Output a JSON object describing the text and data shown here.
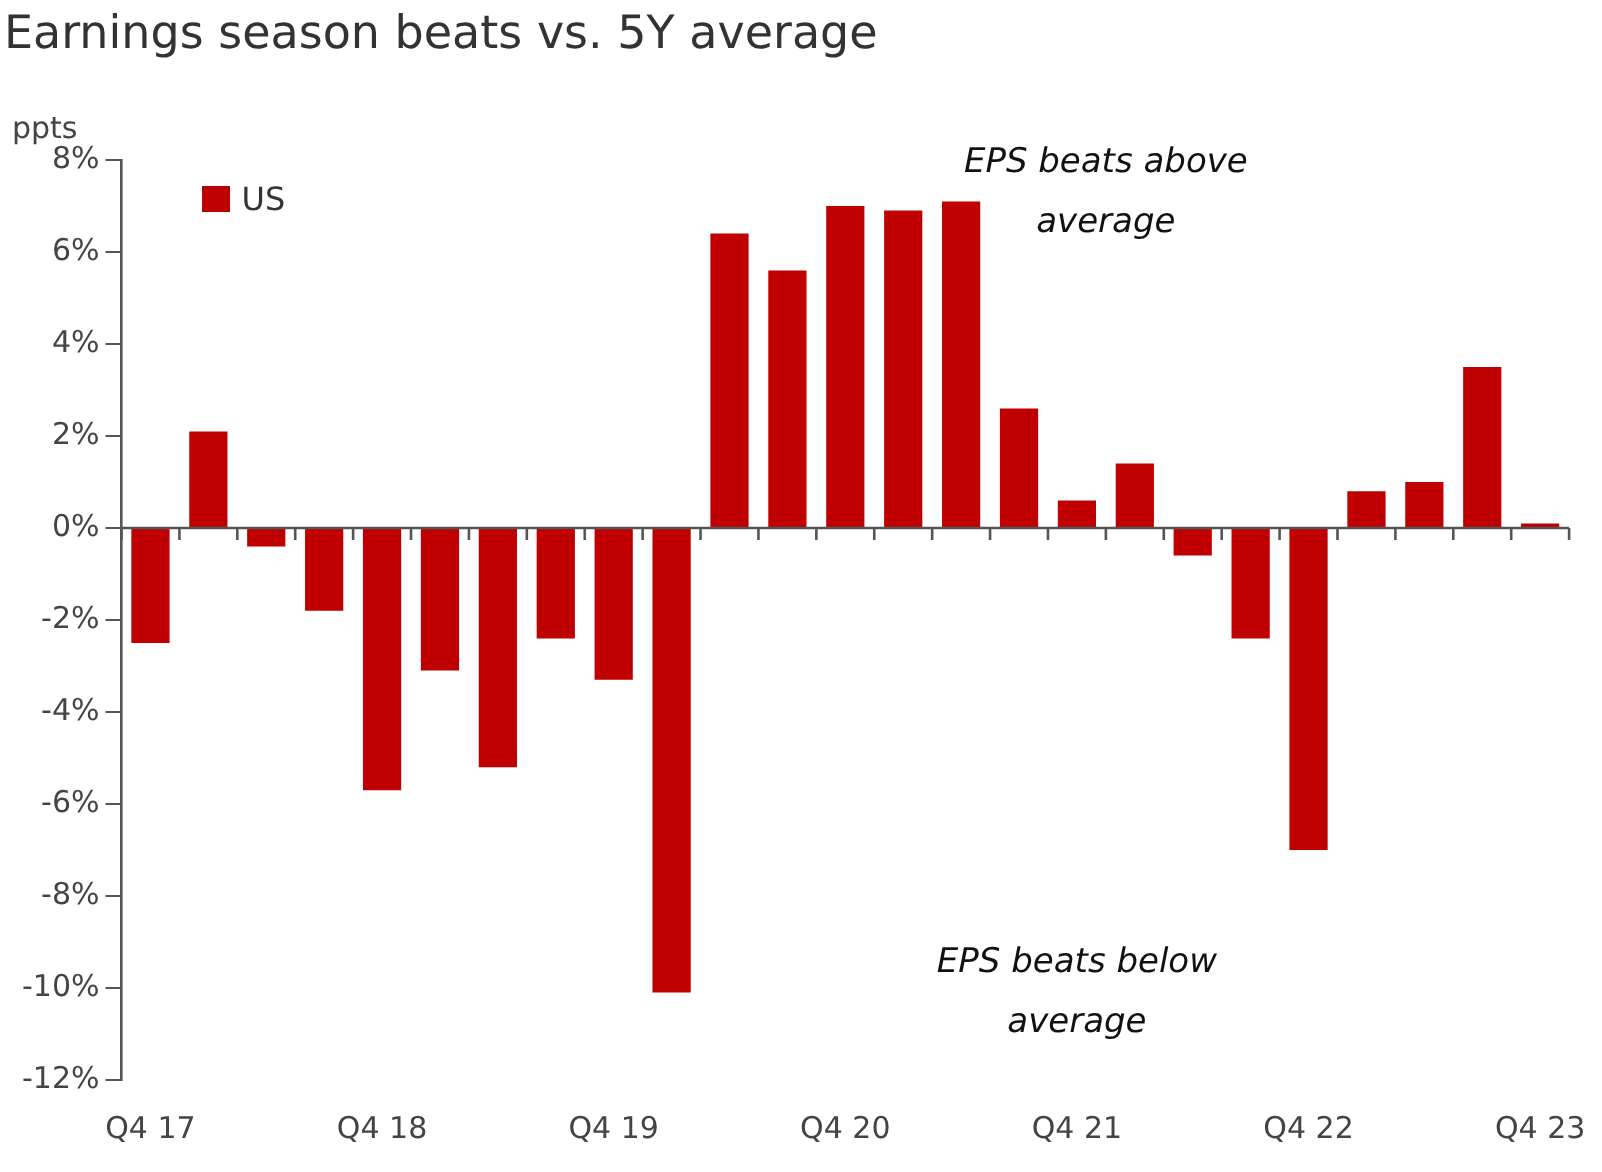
{
  "chart_data": {
    "type": "bar",
    "title": "Earnings season beats vs. 5Y average",
    "ylabel": "ppts",
    "categories": [
      "Q4 17",
      null,
      null,
      null,
      "Q4 18",
      null,
      null,
      null,
      "Q4 19",
      null,
      null,
      null,
      "Q4 20",
      null,
      null,
      null,
      "Q4 21",
      null,
      null,
      null,
      "Q4 22",
      null,
      null,
      null,
      "Q4 23"
    ],
    "series": [
      {
        "name": "US",
        "color": "#c00000",
        "values": [
          -2.5,
          2.1,
          -0.4,
          -1.8,
          -5.7,
          -3.1,
          -5.2,
          -2.4,
          -3.3,
          -10.1,
          6.4,
          5.6,
          7.0,
          6.9,
          7.1,
          2.6,
          0.6,
          1.4,
          -0.6,
          -2.4,
          -7.0,
          0.8,
          1.0,
          3.5,
          0.1
        ]
      }
    ],
    "ylim": [
      -12,
      8
    ],
    "yticks": [
      {
        "value": -12,
        "label": "-12%"
      },
      {
        "value": -10,
        "label": "-10%"
      },
      {
        "value": -8,
        "label": "-8%"
      },
      {
        "value": -6,
        "label": "-6%"
      },
      {
        "value": -4,
        "label": "-4%"
      },
      {
        "value": -2,
        "label": "-2%"
      },
      {
        "value": 0,
        "label": "0%"
      },
      {
        "value": 2,
        "label": "2%"
      },
      {
        "value": 4,
        "label": "4%"
      },
      {
        "value": 6,
        "label": "6%"
      },
      {
        "value": 8,
        "label": "8%"
      }
    ],
    "legend": "top left",
    "annotations": [
      "EPS beats above average",
      "EPS beats below average"
    ]
  }
}
